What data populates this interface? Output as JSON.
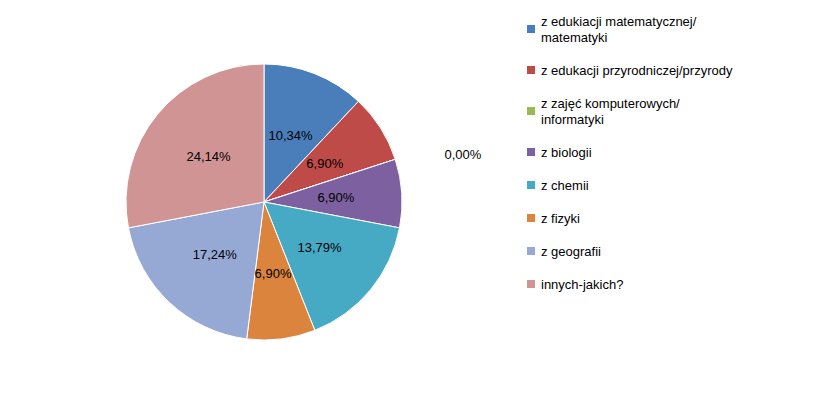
{
  "chart_data": {
    "type": "pie",
    "categories": [
      "z edukiacji matematycznej/matematyki",
      "z edukacji przyrodniczej/przyrody",
      "z zajęć komputerowych/informatyki",
      "z biologii",
      "z chemii",
      "z fizyki",
      "z geografii",
      "innych-jakich?"
    ],
    "values": [
      10.34,
      6.9,
      0.0,
      6.9,
      13.79,
      6.9,
      17.24,
      24.14
    ],
    "value_labels": [
      "10,34%",
      "6,90%",
      "0,00%",
      "6,90%",
      "13,79%",
      "6,90%",
      "17,24%",
      "24,14%"
    ],
    "colors": [
      "#4a7ebb",
      "#be4b48",
      "#98b954",
      "#7d60a0",
      "#46aac5",
      "#db843d",
      "#95a9d4",
      "#d09494"
    ],
    "data_labels": true,
    "legend": "right"
  }
}
